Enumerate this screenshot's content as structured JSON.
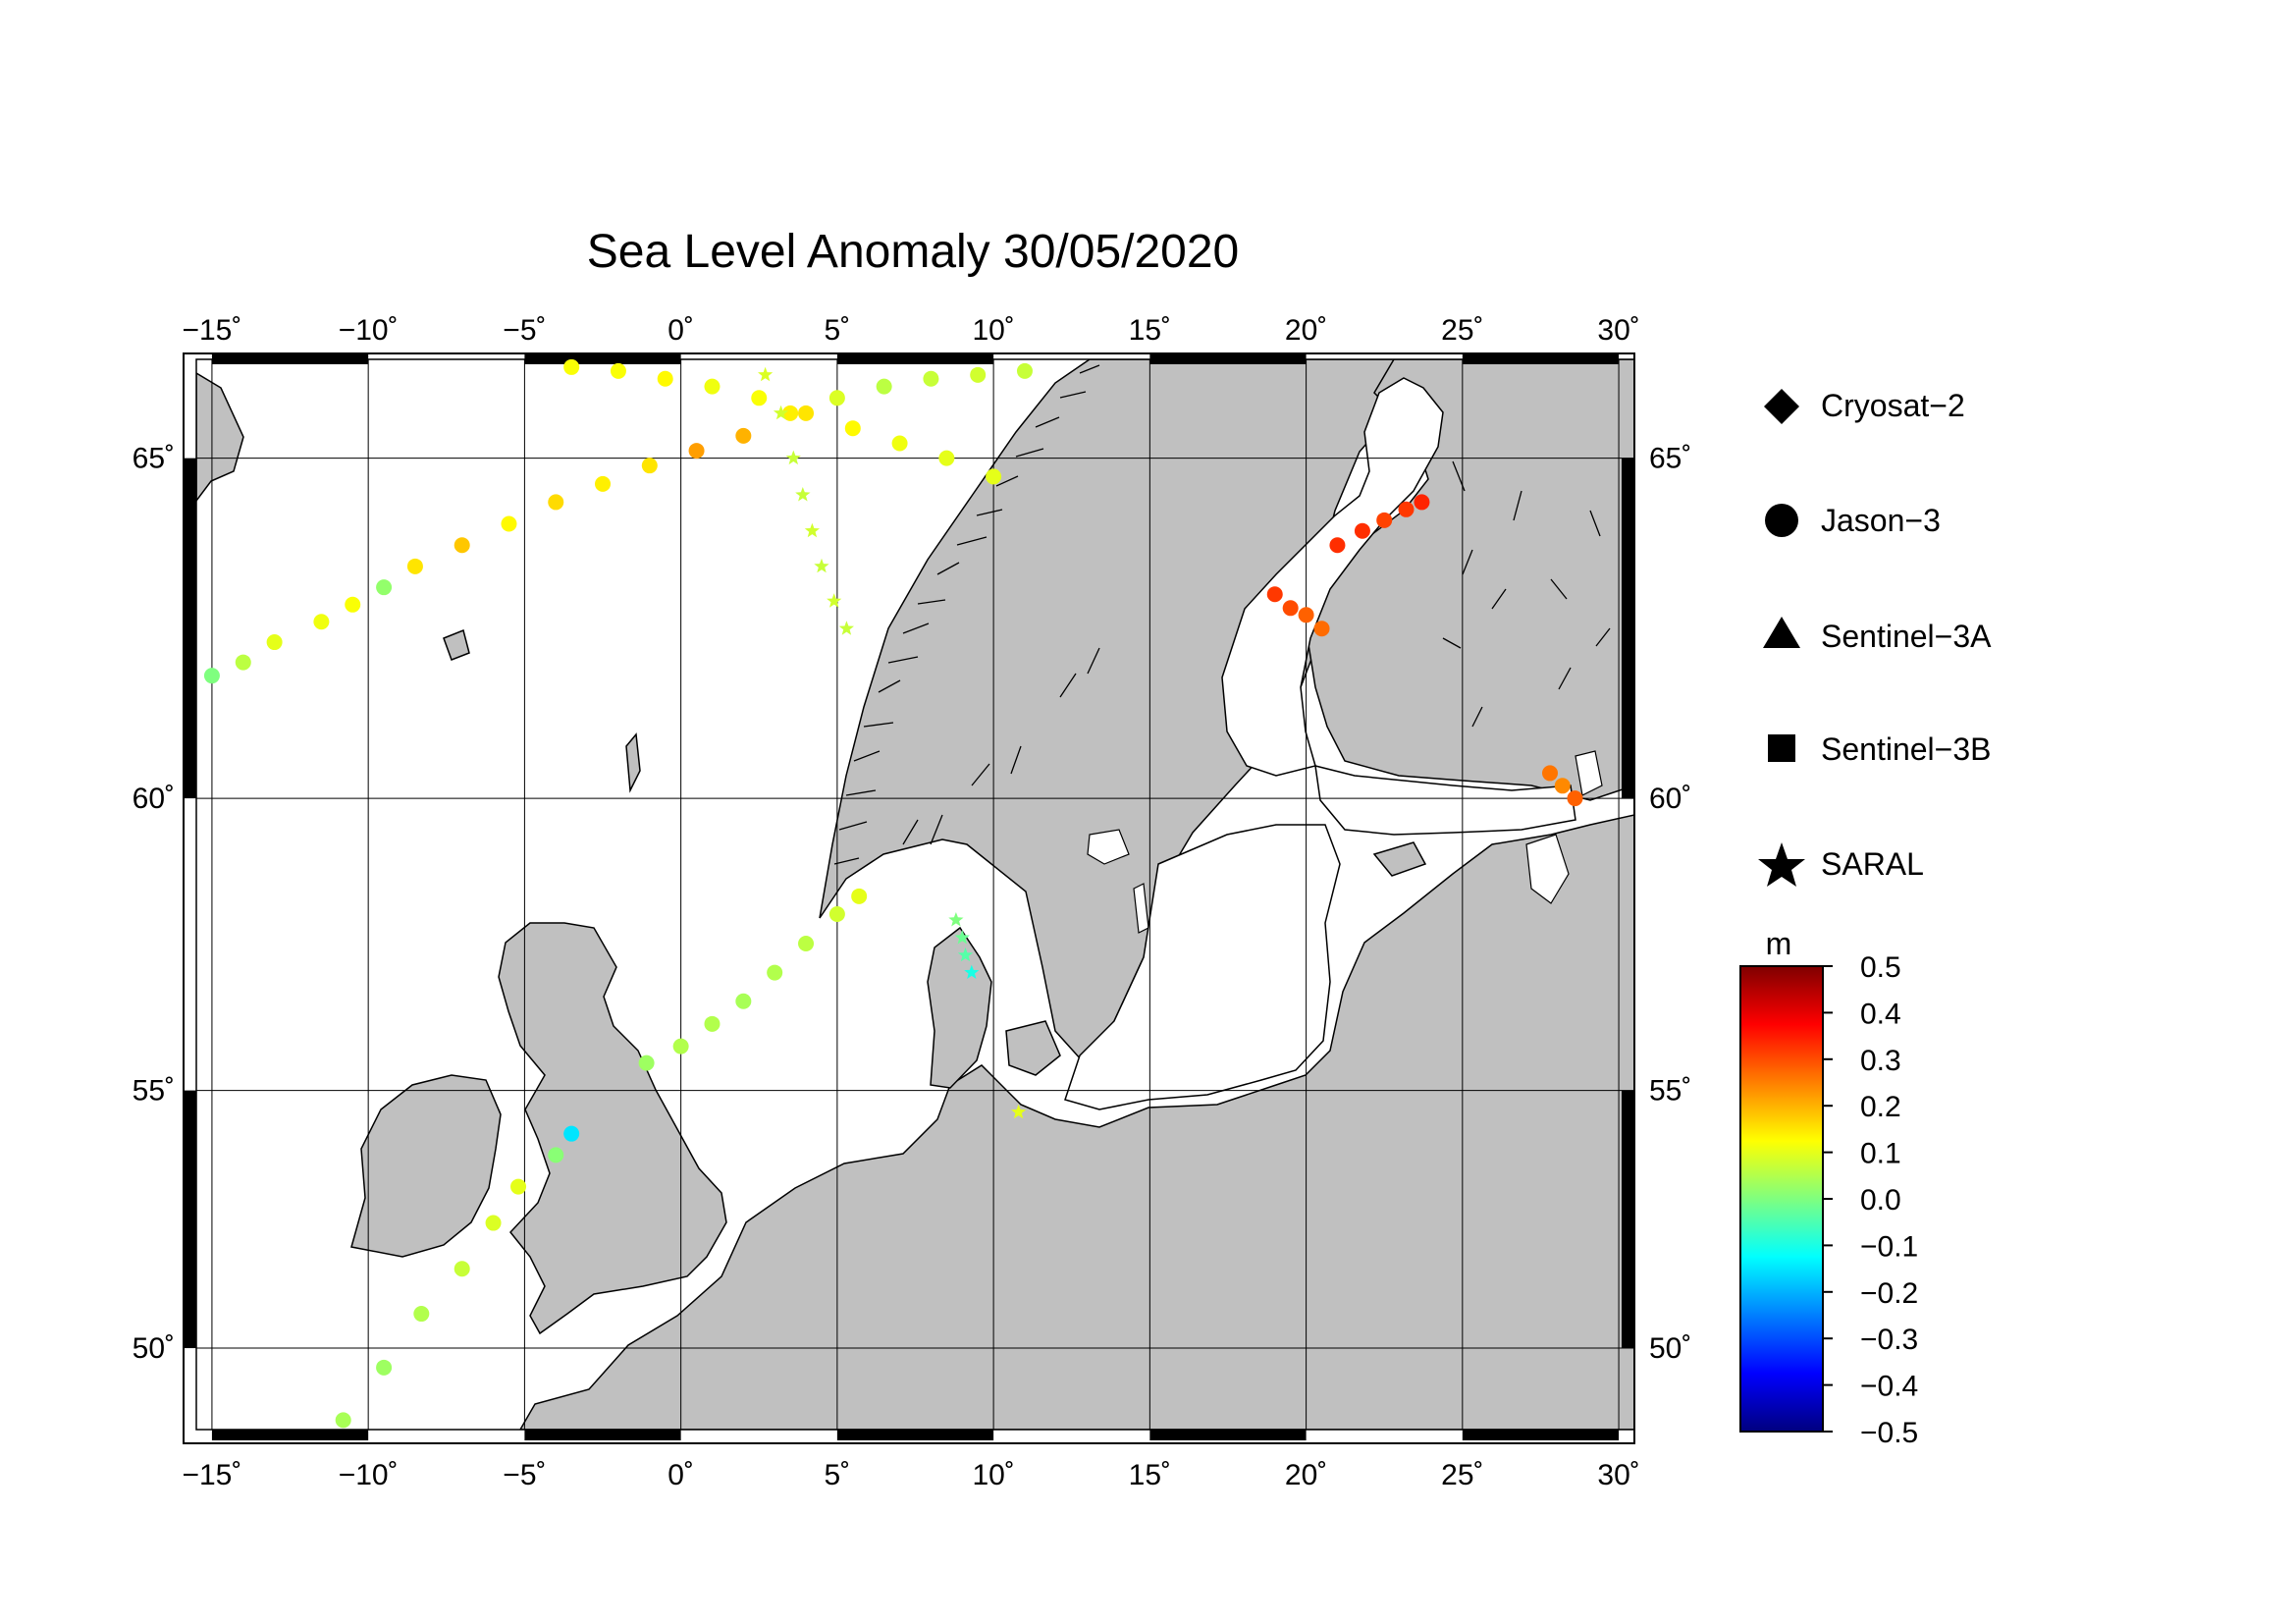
{
  "title": "Sea Level Anomaly 30/05/2020",
  "map": {
    "lon_range": [
      -15.5,
      30.5
    ],
    "lat_range": [
      48.3,
      66.3
    ],
    "lon_ticks": [
      -15,
      -10,
      -5,
      0,
      5,
      10,
      15,
      20,
      25,
      30
    ],
    "lat_ticks": [
      50,
      55,
      60,
      65
    ],
    "lon_tick_labels": [
      "−15˚",
      "−10˚",
      "−5˚",
      "0˚",
      "5˚",
      "10˚",
      "15˚",
      "20˚",
      "25˚",
      "30˚"
    ],
    "lat_tick_labels": [
      "50˚",
      "55˚",
      "60˚",
      "65˚"
    ],
    "land_color": "#c0c0c0",
    "sea_color": "#ffffff",
    "grid": true
  },
  "legend": {
    "items": [
      {
        "label": "Cryosat−2",
        "symbol": "diamond"
      },
      {
        "label": "Jason−3",
        "symbol": "circle"
      },
      {
        "label": "Sentinel−3A",
        "symbol": "triangle"
      },
      {
        "label": "Sentinel−3B",
        "symbol": "square"
      },
      {
        "label": "SARAL",
        "symbol": "star"
      }
    ]
  },
  "colorbar": {
    "unit": "m",
    "range": [
      -0.5,
      0.5
    ],
    "ticks": [
      "0.5",
      "0.4",
      "0.3",
      "0.2",
      "0.1",
      "0.0",
      "−0.1",
      "−0.2",
      "−0.3",
      "−0.4",
      "−0.5"
    ],
    "colormap": [
      "#00007f",
      "#0000ff",
      "#007fff",
      "#00ffff",
      "#7fff7f",
      "#ffff00",
      "#ff7f00",
      "#ff0000",
      "#7f0000"
    ]
  },
  "chart_data": {
    "type": "scatter",
    "title": "Sea Level Anomaly 30/05/2020",
    "xlabel": "",
    "ylabel": "",
    "unit": "m",
    "series": [
      {
        "name": "Jason−3",
        "symbol": "circle",
        "points": [
          [
            -15.0,
            61.9,
            0.0
          ],
          [
            -14.0,
            62.1,
            0.06
          ],
          [
            -13.0,
            62.4,
            0.1
          ],
          [
            -11.5,
            62.7,
            0.11
          ],
          [
            -10.5,
            62.95,
            0.12
          ],
          [
            -9.5,
            63.2,
            0.02
          ],
          [
            -8.5,
            63.5,
            0.15
          ],
          [
            -7.0,
            63.8,
            0.18
          ],
          [
            -5.5,
            64.1,
            0.13
          ],
          [
            -4.0,
            64.4,
            0.16
          ],
          [
            -2.5,
            64.65,
            0.14
          ],
          [
            -1.0,
            64.9,
            0.15
          ],
          [
            0.5,
            65.1,
            0.22
          ],
          [
            2.0,
            65.3,
            0.2
          ],
          [
            3.5,
            65.6,
            0.14
          ],
          [
            5.0,
            65.8,
            0.09
          ],
          [
            6.5,
            65.95,
            0.06
          ],
          [
            8.0,
            66.05,
            0.07
          ],
          [
            9.5,
            66.1,
            0.08
          ],
          [
            11.0,
            66.15,
            0.07
          ],
          [
            -3.5,
            66.2,
            0.12
          ],
          [
            -2.0,
            66.15,
            0.12
          ],
          [
            -0.5,
            66.05,
            0.13
          ],
          [
            1.0,
            65.95,
            0.11
          ],
          [
            2.5,
            65.8,
            0.12
          ],
          [
            4.0,
            65.6,
            0.15
          ],
          [
            5.5,
            65.4,
            0.13
          ],
          [
            7.0,
            65.2,
            0.11
          ],
          [
            8.5,
            65.0,
            0.1
          ],
          [
            10.0,
            64.75,
            0.1
          ],
          [
            -1.1,
            55.5,
            0.03
          ],
          [
            0.0,
            55.8,
            0.05
          ],
          [
            1.0,
            56.2,
            0.05
          ],
          [
            2.0,
            56.6,
            0.04
          ],
          [
            3.0,
            57.1,
            0.05
          ],
          [
            4.0,
            57.6,
            0.06
          ],
          [
            5.0,
            58.1,
            0.08
          ],
          [
            5.7,
            58.4,
            0.1
          ],
          [
            -10.8,
            48.5,
            0.04
          ],
          [
            -9.5,
            49.6,
            0.03
          ],
          [
            -8.3,
            50.7,
            0.05
          ],
          [
            -7.0,
            51.6,
            0.07
          ],
          [
            -6.0,
            52.5,
            0.09
          ],
          [
            -5.2,
            53.2,
            0.1
          ],
          [
            -4.0,
            53.8,
            0.01
          ],
          [
            -3.5,
            54.2,
            -0.15
          ],
          [
            19.0,
            63.1,
            0.32
          ],
          [
            19.5,
            62.9,
            0.3
          ],
          [
            20.0,
            62.8,
            0.28
          ],
          [
            20.5,
            62.6,
            0.27
          ],
          [
            21.0,
            63.8,
            0.33
          ],
          [
            21.8,
            64.0,
            0.33
          ],
          [
            22.5,
            64.15,
            0.31
          ],
          [
            23.2,
            64.3,
            0.32
          ],
          [
            23.7,
            64.4,
            0.34
          ],
          [
            27.8,
            60.4,
            0.26
          ],
          [
            28.2,
            60.2,
            0.24
          ],
          [
            28.6,
            60.0,
            0.28
          ]
        ]
      },
      {
        "name": "SARAL",
        "symbol": "star",
        "points": [
          [
            2.7,
            66.1,
            0.09
          ],
          [
            3.2,
            65.6,
            0.08
          ],
          [
            3.6,
            65.0,
            0.07
          ],
          [
            3.9,
            64.5,
            0.07
          ],
          [
            4.2,
            64.0,
            0.08
          ],
          [
            4.5,
            63.5,
            0.07
          ],
          [
            4.9,
            63.0,
            0.08
          ],
          [
            5.3,
            62.6,
            0.07
          ],
          [
            8.8,
            58.0,
            0.0
          ],
          [
            9.0,
            57.7,
            -0.02
          ],
          [
            9.1,
            57.4,
            -0.04
          ],
          [
            9.3,
            57.1,
            -0.1
          ],
          [
            10.8,
            54.6,
            0.1
          ]
        ]
      }
    ]
  }
}
